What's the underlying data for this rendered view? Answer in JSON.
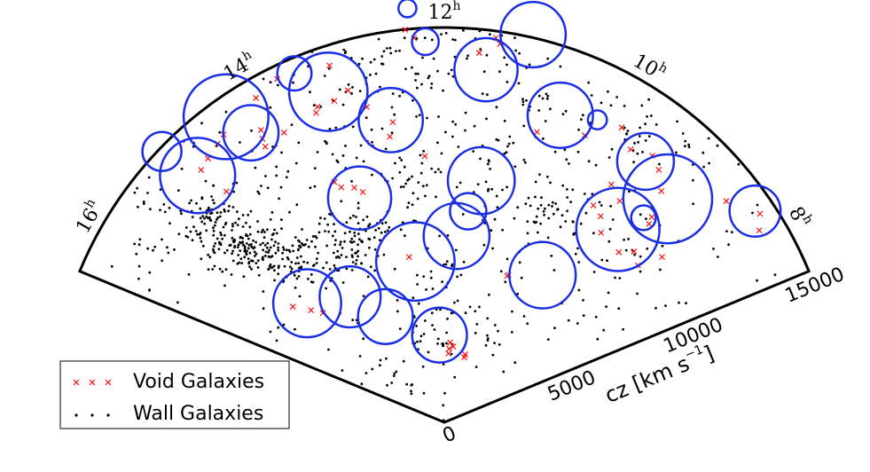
{
  "chart_data": {
    "type": "scatter",
    "projection": "polar wedge (cone diagram)",
    "angular_axis": {
      "unit": "h",
      "range": [
        7.5,
        16.5
      ],
      "ticks": [
        {
          "value": 8,
          "base": "8",
          "sup": "h"
        },
        {
          "value": 10,
          "base": "10",
          "sup": "h"
        },
        {
          "value": 12,
          "base": "12",
          "sup": "h"
        },
        {
          "value": 14,
          "base": "14",
          "sup": "h"
        },
        {
          "value": 16,
          "base": "16",
          "sup": "h"
        }
      ]
    },
    "radial_axis": {
      "label_main": "cz [km s",
      "label_sup": "−1",
      "label_end": "]",
      "range": [
        0,
        15000
      ],
      "ticks": [
        {
          "value": 0,
          "label": "0"
        },
        {
          "value": 5000,
          "label": "5000"
        },
        {
          "value": 10000,
          "label": "10000"
        },
        {
          "value": 15000,
          "label": "15000"
        }
      ]
    },
    "legend": {
      "placement": "lower-left",
      "entries": [
        {
          "name": "Void Galaxies",
          "marker": "x",
          "color": "#ff0000"
        },
        {
          "name": "Wall Galaxies",
          "marker": "dot",
          "color": "#000000"
        }
      ]
    },
    "colors": {
      "void_circle": "#1a2ee6",
      "void_galaxy": "#ff0000",
      "wall_galaxy": "#000000"
    },
    "voids": [
      {
        "ra": 15.27,
        "cz": 6900,
        "r": 1290
      },
      {
        "ra": 14.46,
        "cz": 5960,
        "r": 1160
      },
      {
        "ra": 13.94,
        "cz": 4600,
        "r": 1040
      },
      {
        "ra": 12.68,
        "cz": 6210,
        "r": 1490
      },
      {
        "ra": 11.75,
        "cz": 7090,
        "r": 1250
      },
      {
        "ra": 12.21,
        "cz": 3320,
        "r": 1040
      },
      {
        "ra": 9.75,
        "cz": 6720,
        "r": 1260
      },
      {
        "ra": 13.38,
        "cz": 9110,
        "r": 1200
      },
      {
        "ra": 12.67,
        "cz": 11660,
        "r": 1220
      },
      {
        "ra": 11.42,
        "cz": 9290,
        "r": 1270
      },
      {
        "ra": 11.57,
        "cz": 8070,
        "r": 690
      },
      {
        "ra": 9.2,
        "cz": 9860,
        "r": 1580
      },
      {
        "ra": 13.29,
        "cz": 13310,
        "r": 1490
      },
      {
        "ra": 14.25,
        "cz": 13230,
        "r": 1050
      },
      {
        "ra": 15.0,
        "cz": 13260,
        "r": 1430
      },
      {
        "ra": 14.37,
        "cz": 14270,
        "r": 1610
      },
      {
        "ra": 13.55,
        "cz": 14430,
        "r": 650
      },
      {
        "ra": 15.08,
        "cz": 14870,
        "r": 740
      },
      {
        "ra": 10.62,
        "cz": 12470,
        "r": 1240
      },
      {
        "ra": 10.21,
        "cz": 12880,
        "r": 360
      },
      {
        "ra": 11.55,
        "cz": 13490,
        "r": 1200
      },
      {
        "ra": 12.19,
        "cz": 14480,
        "r": 510
      },
      {
        "ra": 11.14,
        "cz": 15110,
        "r": 1240
      },
      {
        "ra": 9.49,
        "cz": 12520,
        "r": 1080
      },
      {
        "ra": 9.0,
        "cz": 12010,
        "r": 1690
      },
      {
        "ra": 9.05,
        "cz": 10850,
        "r": 470
      },
      {
        "ra": 12.34,
        "cz": 15790,
        "r": 340
      },
      {
        "ra": 8.28,
        "cz": 14280,
        "r": 970
      }
    ],
    "void_galaxies": [
      {
        "ra": 15.33,
        "cz": 6620
      },
      {
        "ra": 15.2,
        "cz": 6210
      },
      {
        "ra": 15.51,
        "cz": 7240
      },
      {
        "ra": 12.8,
        "cz": 6420
      },
      {
        "ra": 11.77,
        "cz": 2620
      },
      {
        "ra": 11.55,
        "cz": 2900
      },
      {
        "ra": 11.75,
        "cz": 2800
      },
      {
        "ra": 11.72,
        "cz": 3040
      },
      {
        "ra": 10.86,
        "cz": 2590
      },
      {
        "ra": 10.86,
        "cz": 2700
      },
      {
        "ra": 13.3,
        "cz": 9280
      },
      {
        "ra": 13.4,
        "cz": 9550
      },
      {
        "ra": 13.58,
        "cz": 9750
      },
      {
        "ra": 13.64,
        "cz": 10040
      },
      {
        "ra": 12.65,
        "cz": 11570
      },
      {
        "ra": 12.72,
        "cz": 11050
      },
      {
        "ra": 12.28,
        "cz": 10140
      },
      {
        "ra": 13.19,
        "cz": 14240
      },
      {
        "ra": 13.73,
        "cz": 14510
      },
      {
        "ra": 14.14,
        "cz": 13110
      },
      {
        "ra": 13.93,
        "cz": 12580
      },
      {
        "ra": 14.18,
        "cz": 12800
      },
      {
        "ra": 14.2,
        "cz": 12490
      },
      {
        "ra": 14.93,
        "cz": 13320
      },
      {
        "ra": 14.79,
        "cz": 13460
      },
      {
        "ra": 14.5,
        "cz": 13780
      },
      {
        "ra": 12.92,
        "cz": 12340
      },
      {
        "ra": 10.82,
        "cz": 11580
      },
      {
        "ra": 10.26,
        "cz": 12140
      },
      {
        "ra": 9.71,
        "cz": 12560
      },
      {
        "ra": 9.47,
        "cz": 12850
      },
      {
        "ra": 9.31,
        "cz": 12590
      },
      {
        "ra": 9.12,
        "cz": 12050
      },
      {
        "ra": 8.98,
        "cz": 11090
      },
      {
        "ra": 8.94,
        "cz": 10830
      },
      {
        "ra": 9.66,
        "cz": 11040
      },
      {
        "ra": 9.44,
        "cz": 10730
      },
      {
        "ra": 9.36,
        "cz": 9350
      },
      {
        "ra": 9.52,
        "cz": 9830
      },
      {
        "ra": 8.48,
        "cz": 10390
      },
      {
        "ra": 8.09,
        "cz": 14020
      },
      {
        "ra": 11.64,
        "cz": 14100
      },
      {
        "ra": 11.49,
        "cz": 14740
      },
      {
        "ra": 11.44,
        "cz": 14530
      },
      {
        "ra": 10.93,
        "cz": 15290
      },
      {
        "ra": 11.27,
        "cz": 15740
      },
      {
        "ra": 12.04,
        "cz": 15220
      },
      {
        "ra": 12.38,
        "cz": 14990
      },
      {
        "ra": 11.92,
        "cz": 15410
      },
      {
        "ra": 12.3,
        "cz": 14640
      },
      {
        "ra": 13.08,
        "cz": 13130
      },
      {
        "ra": 14.01,
        "cz": 14250
      },
      {
        "ra": 13.26,
        "cz": 12910
      },
      {
        "ra": 13.5,
        "cz": 12730
      },
      {
        "ra": 13.46,
        "cz": 12920
      },
      {
        "ra": 14.61,
        "cz": 13650
      },
      {
        "ra": 14.89,
        "cz": 12060
      },
      {
        "ra": 10.43,
        "cz": 6110
      },
      {
        "ra": 10.45,
        "cz": 6050
      },
      {
        "ra": 9.7,
        "cz": 10000
      },
      {
        "ra": 8.95,
        "cz": 9260
      },
      {
        "ra": 8.6,
        "cz": 9470
      },
      {
        "ra": 8.8,
        "cz": 9700
      },
      {
        "ra": 8.23,
        "cz": 14380
      },
      {
        "ra": 8.54,
        "cz": 13620
      },
      {
        "ra": 9.93,
        "cz": 13070
      }
    ],
    "wall_clusters": [
      {
        "ra": 15.25,
        "cz": 10300,
        "sra": 0.22,
        "scz": 750,
        "n": 110
      },
      {
        "ra": 15.3,
        "cz": 11700,
        "sra": 0.16,
        "scz": 650,
        "n": 70
      },
      {
        "ra": 14.95,
        "cz": 8800,
        "sra": 0.22,
        "scz": 650,
        "n": 60
      },
      {
        "ra": 14.25,
        "cz": 8300,
        "sra": 0.5,
        "scz": 450,
        "n": 55
      },
      {
        "ra": 13.9,
        "cz": 7300,
        "sra": 0.3,
        "scz": 400,
        "n": 45
      },
      {
        "ra": 13.4,
        "cz": 7700,
        "sra": 0.35,
        "scz": 350,
        "n": 30
      },
      {
        "ra": 12.0,
        "cz": 5000,
        "sra": 0.35,
        "scz": 1300,
        "n": 40
      },
      {
        "ra": 13.2,
        "cz": 3900,
        "sra": 0.22,
        "scz": 700,
        "n": 15
      },
      {
        "ra": 10.35,
        "cz": 8900,
        "sra": 0.18,
        "scz": 1000,
        "n": 35
      },
      {
        "ra": 9.9,
        "cz": 9600,
        "sra": 0.28,
        "scz": 900,
        "n": 25
      },
      {
        "ra": 9.75,
        "cz": 13000,
        "sra": 0.1,
        "scz": 500,
        "n": 20
      },
      {
        "ra": 11.15,
        "cz": 9500,
        "sra": 0.22,
        "scz": 1200,
        "n": 25
      },
      {
        "ra": 12.25,
        "cz": 9800,
        "sra": 0.3,
        "scz": 1200,
        "n": 30
      },
      {
        "ra": 13.25,
        "cz": 11200,
        "sra": 0.45,
        "scz": 1100,
        "n": 35
      },
      {
        "ra": 12.9,
        "cz": 14200,
        "sra": 0.6,
        "scz": 800,
        "n": 45
      },
      {
        "ra": 11.4,
        "cz": 14600,
        "sra": 0.5,
        "scz": 700,
        "n": 30
      },
      {
        "ra": 10.9,
        "cz": 12200,
        "sra": 0.25,
        "scz": 1200,
        "n": 20
      },
      {
        "ra": 9.05,
        "cz": 13900,
        "sra": 0.25,
        "scz": 600,
        "n": 15
      },
      {
        "ra": 8.7,
        "cz": 8500,
        "sra": 0.22,
        "scz": 1800,
        "n": 25
      },
      {
        "ra": 14.8,
        "cz": 3200,
        "sra": 0.5,
        "scz": 1200,
        "n": 10
      },
      {
        "ra": 10.7,
        "cz": 4900,
        "sra": 0.4,
        "scz": 1100,
        "n": 15
      },
      {
        "ra": 14.55,
        "cz": 11400,
        "sra": 0.4,
        "scz": 900,
        "n": 15
      },
      {
        "ra": 15.7,
        "cz": 13100,
        "sra": 0.25,
        "scz": 900,
        "n": 25
      }
    ],
    "wall_field_count": 260
  }
}
